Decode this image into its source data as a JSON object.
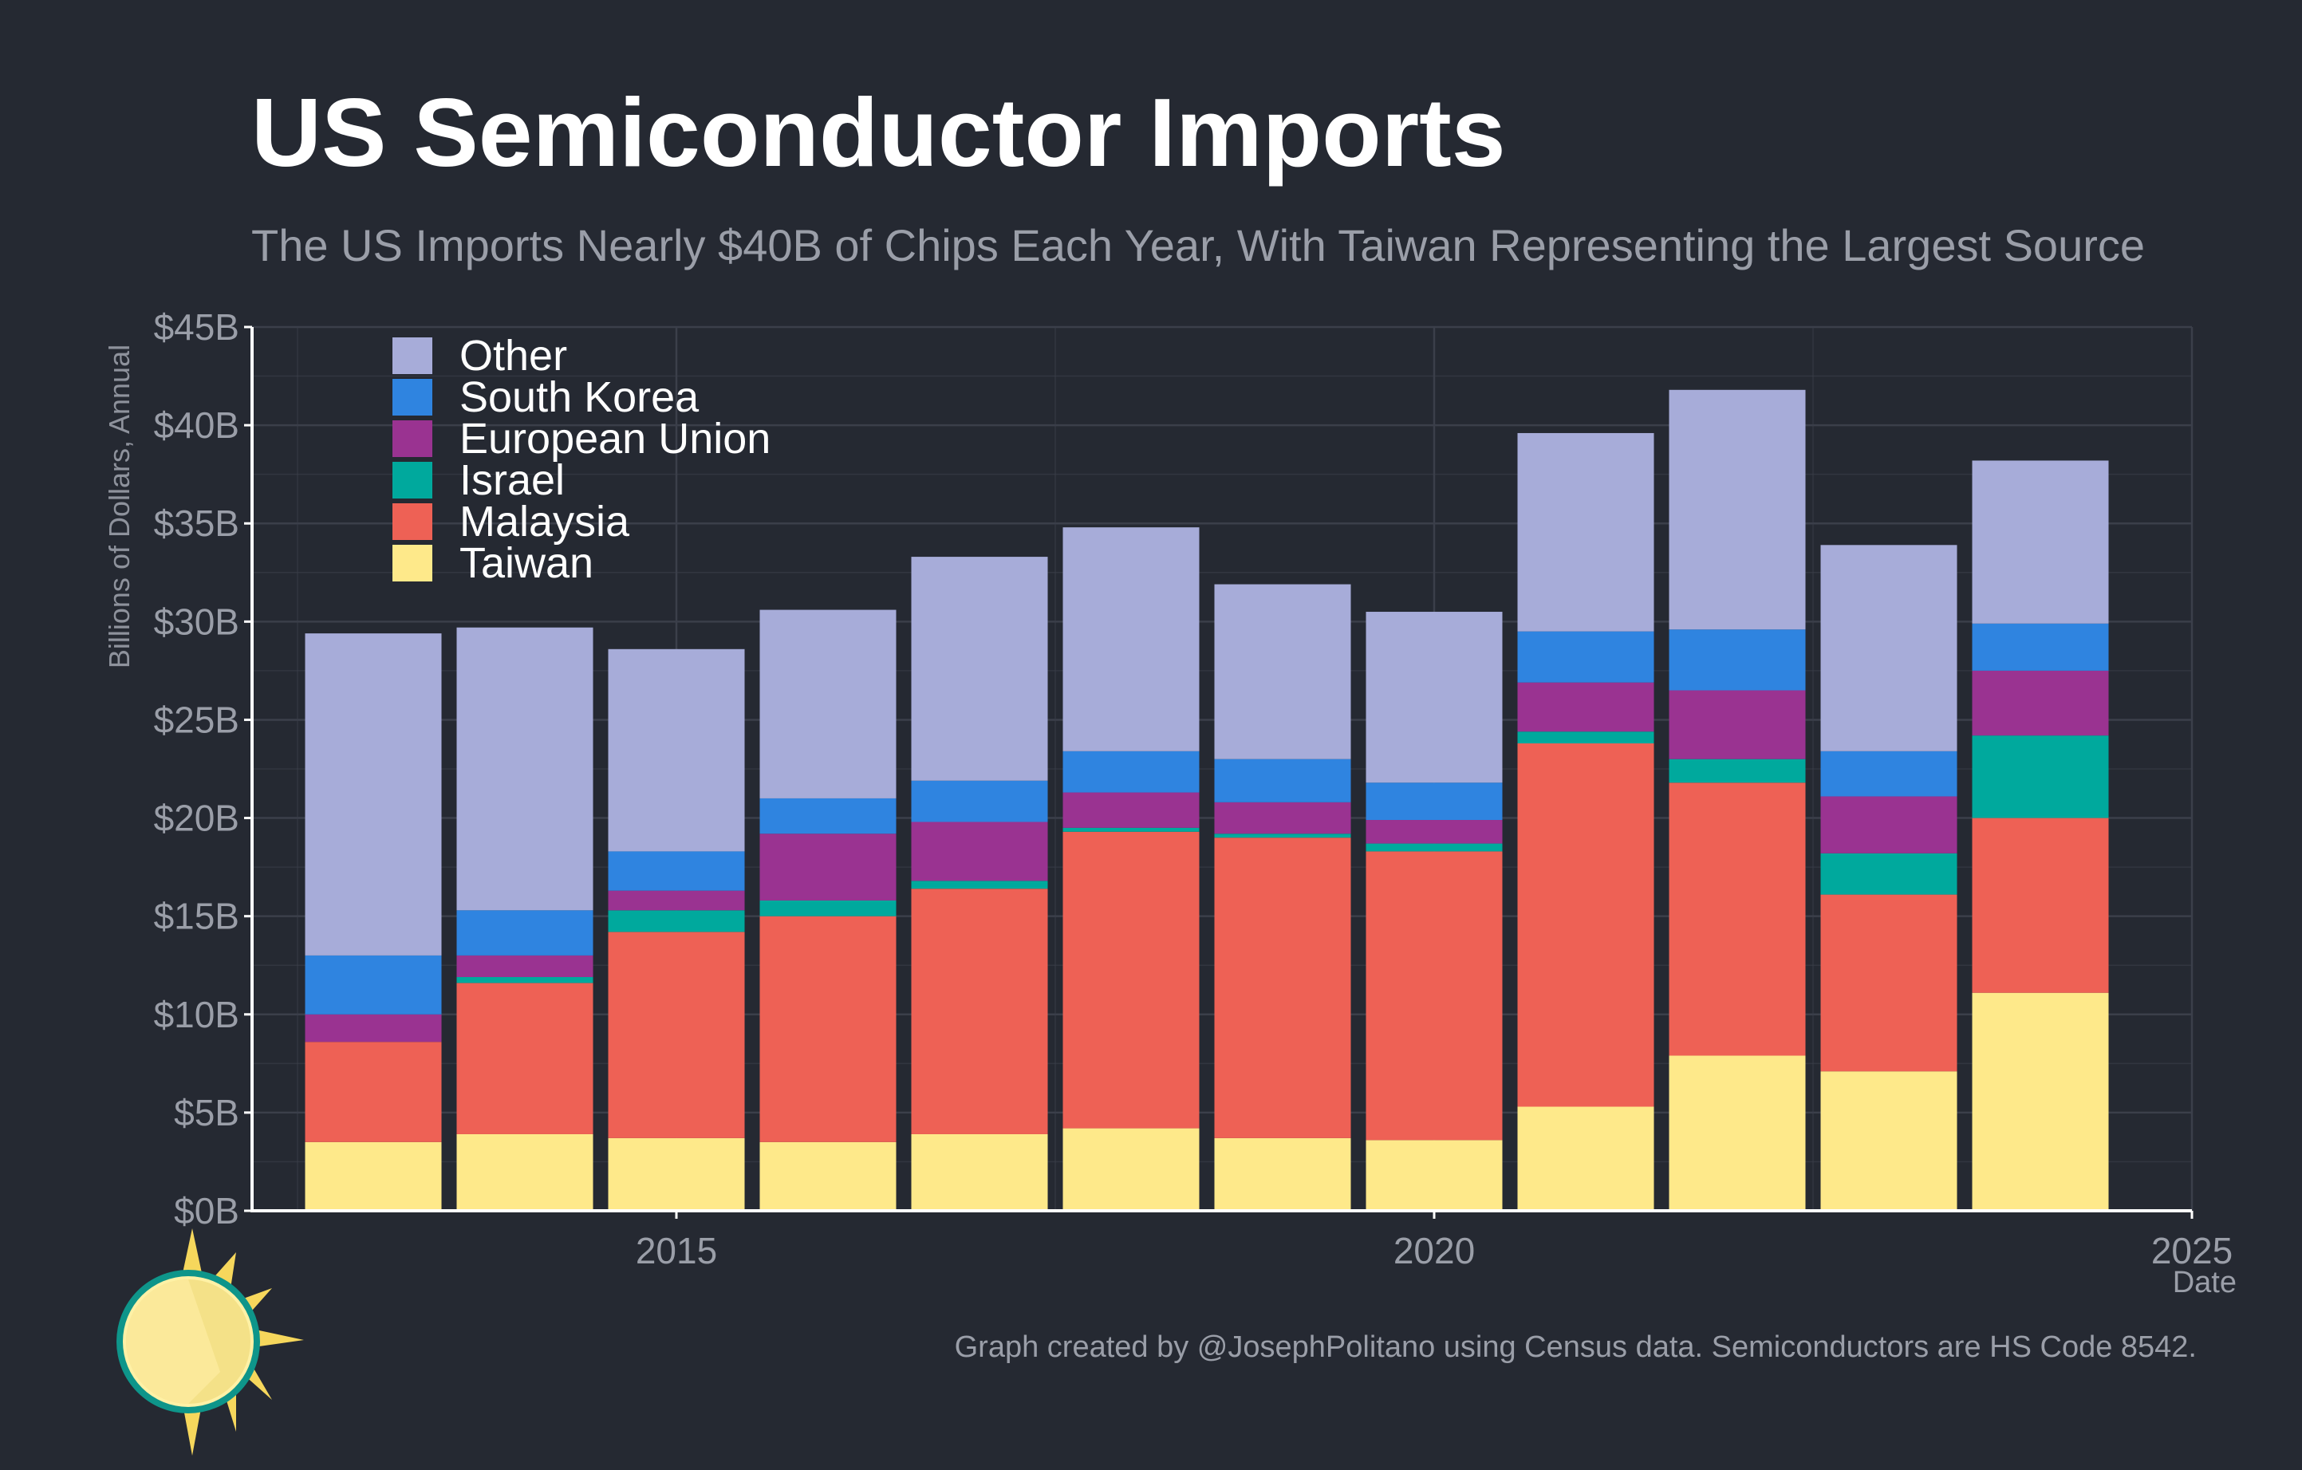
{
  "colors": {
    "background": "#252932",
    "grid": "#3b3f4a",
    "axis": "#ffffff",
    "Other": "#a7acd9",
    "South Korea": "#2f84e0",
    "European Union": "#9a3391",
    "Israel": "#00a99d",
    "Malaysia": "#ee6155",
    "Taiwan": "#fee98a"
  },
  "chart_data": {
    "type": "bar",
    "stacked": true,
    "title": "US Semiconductor Imports",
    "subtitle": "The US Imports Nearly $40B of Chips Each Year, With Taiwan Representing the Largest Source",
    "xlabel": "Date",
    "ylabel": "Billions of Dollars, Annual",
    "caption": "Graph created by @JosephPolitano using Census data. Semiconductors are HS Code 8542.",
    "categories": [
      2013,
      2014,
      2015,
      2016,
      2017,
      2018,
      2019,
      2020,
      2021,
      2022,
      2023,
      2024
    ],
    "xlim": [
      2012.2,
      2025
    ],
    "x_ticks": [
      2015,
      2020,
      2025
    ],
    "x_tick_labels": [
      "2015",
      "2020",
      "2025"
    ],
    "ylim": [
      0,
      45
    ],
    "y_ticks": [
      0,
      5,
      10,
      15,
      20,
      25,
      30,
      35,
      40,
      45
    ],
    "y_tick_labels": [
      "$0B",
      "$5B",
      "$10B",
      "$15B",
      "$20B",
      "$25B",
      "$30B",
      "$35B",
      "$40B",
      "$45B"
    ],
    "legend_position": "top-left",
    "legend_order": [
      "Other",
      "South Korea",
      "European Union",
      "Israel",
      "Malaysia",
      "Taiwan"
    ],
    "series": [
      {
        "name": "Taiwan",
        "values": [
          3.5,
          3.9,
          3.7,
          3.5,
          3.9,
          4.2,
          3.7,
          3.6,
          5.3,
          7.9,
          7.1,
          11.1
        ]
      },
      {
        "name": "Malaysia",
        "values": [
          5.1,
          7.7,
          10.5,
          11.5,
          12.5,
          15.1,
          15.3,
          14.7,
          18.5,
          13.9,
          9.0,
          8.9
        ]
      },
      {
        "name": "Israel",
        "values": [
          0.0,
          0.3,
          1.1,
          0.8,
          0.4,
          0.2,
          0.2,
          0.4,
          0.6,
          1.2,
          2.1,
          4.2
        ]
      },
      {
        "name": "European Union",
        "values": [
          1.4,
          1.1,
          1.0,
          3.4,
          3.0,
          1.8,
          1.6,
          1.2,
          2.5,
          3.5,
          2.9,
          3.3
        ]
      },
      {
        "name": "South Korea",
        "values": [
          3.0,
          2.3,
          2.0,
          1.8,
          2.1,
          2.1,
          2.2,
          1.9,
          2.6,
          3.1,
          2.3,
          2.4
        ]
      },
      {
        "name": "Other",
        "values": [
          16.4,
          14.4,
          10.3,
          9.6,
          11.4,
          11.4,
          8.9,
          8.7,
          10.1,
          12.2,
          10.5,
          8.3
        ]
      }
    ]
  }
}
